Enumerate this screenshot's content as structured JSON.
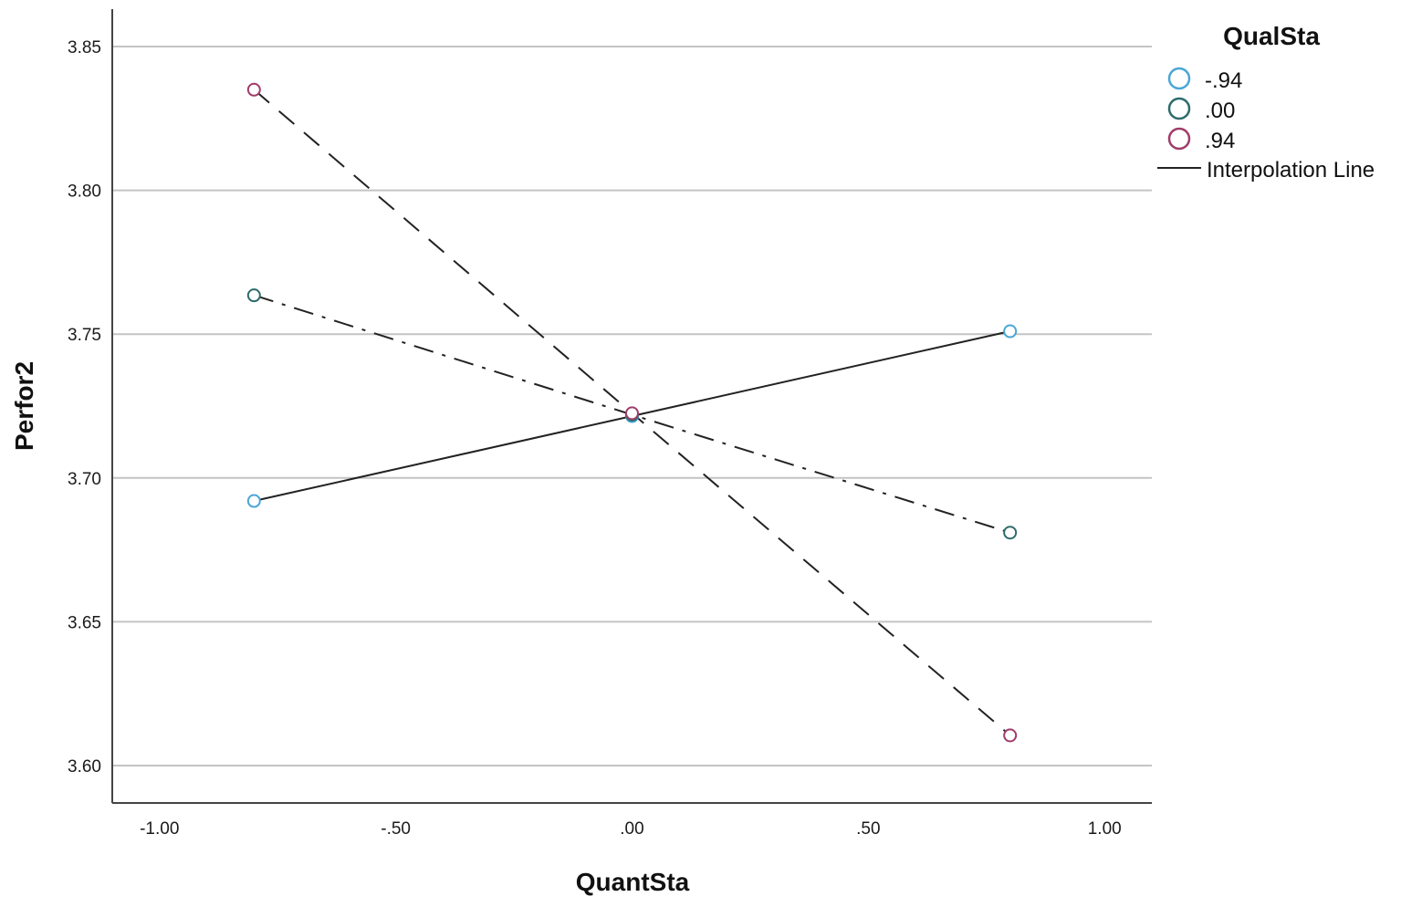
{
  "chart_data": {
    "type": "line",
    "xlabel": "QuantSta",
    "ylabel": "Perfor2",
    "xlim": [
      -1.1,
      1.1
    ],
    "ylim": [
      3.587,
      3.863
    ],
    "x_ticks": [
      {
        "value": -1.0,
        "label": "-1.00"
      },
      {
        "value": -0.5,
        "label": "-.50"
      },
      {
        "value": 0.0,
        "label": ".00"
      },
      {
        "value": 0.5,
        "label": ".50"
      },
      {
        "value": 1.0,
        "label": "1.00"
      }
    ],
    "y_ticks": [
      {
        "value": 3.6,
        "label": "3.60"
      },
      {
        "value": 3.65,
        "label": "3.65"
      },
      {
        "value": 3.7,
        "label": "3.70"
      },
      {
        "value": 3.75,
        "label": "3.75"
      },
      {
        "value": 3.8,
        "label": "3.80"
      },
      {
        "value": 3.85,
        "label": "3.85"
      }
    ],
    "grid": "horizontal",
    "legend": {
      "title": "QualSta",
      "position": "right-top",
      "line_label": "Interpolation Line"
    },
    "series": [
      {
        "name": "-.94",
        "color": "#4aa6d6",
        "line_style": "solid",
        "points": [
          {
            "x": -0.8,
            "y": 3.692
          },
          {
            "x": 0.0,
            "y": 3.7215
          },
          {
            "x": 0.8,
            "y": 3.751
          }
        ]
      },
      {
        "name": ".00",
        "color": "#2e6b6b",
        "line_style": "dashdot",
        "points": [
          {
            "x": -0.8,
            "y": 3.7635
          },
          {
            "x": 0.0,
            "y": 3.722
          },
          {
            "x": 0.8,
            "y": 3.681
          }
        ]
      },
      {
        "name": ".94",
        "color": "#a03c6a",
        "line_style": "dashed",
        "points": [
          {
            "x": -0.8,
            "y": 3.835
          },
          {
            "x": 0.0,
            "y": 3.7225
          },
          {
            "x": 0.8,
            "y": 3.6105
          }
        ]
      }
    ]
  }
}
